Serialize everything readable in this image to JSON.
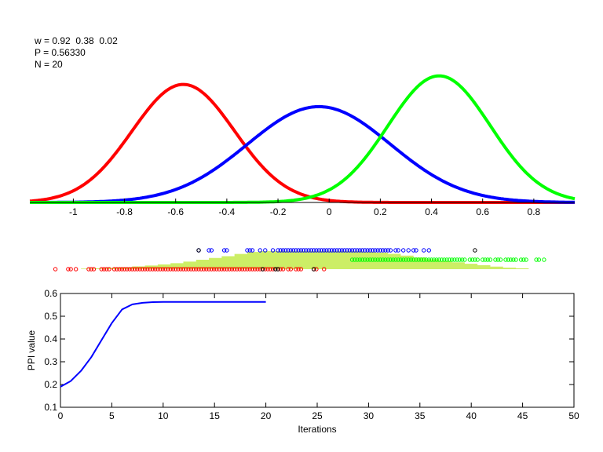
{
  "info": {
    "w_line": "w = 0.92  0.38  0.02",
    "p_line": "P = 0.56330",
    "n_line": "N = 20"
  },
  "chart_data": [
    {
      "type": "line",
      "title": "",
      "xlabel": "",
      "ylabel": "",
      "xlim": [
        -1.17,
        0.96
      ],
      "ylim": [
        0,
        1
      ],
      "x_ticks": [
        "-1",
        "-0.8",
        "-0.6",
        "-0.4",
        "-0.2",
        "0",
        "0.2",
        "0.4",
        "0.6",
        "0.8"
      ],
      "x_tick_values": [
        -1,
        -0.8,
        -0.6,
        -0.4,
        -0.2,
        0,
        0.2,
        0.4,
        0.6,
        0.8
      ],
      "grid": false,
      "series": [
        {
          "color": "#ff0000",
          "mean": -0.57,
          "sigma": 0.2,
          "peak": 0.69
        },
        {
          "color": "#0000ff",
          "mean": -0.04,
          "sigma": 0.28,
          "peak": 0.56
        },
        {
          "color": "#00ff00",
          "mean": 0.43,
          "sigma": 0.2,
          "peak": 0.74
        }
      ]
    },
    {
      "type": "scatter",
      "title": "",
      "xlim": [
        -1.17,
        0.96
      ],
      "histogram": {
        "color": "#ccee66",
        "bin_start": -0.97,
        "bin_width": 0.05,
        "heights": [
          0.03,
          0.05,
          0.08,
          0.11,
          0.15,
          0.2,
          0.26,
          0.33,
          0.42,
          0.52,
          0.62,
          0.72,
          0.84,
          0.95,
          1,
          1,
          1,
          1,
          1,
          1,
          1,
          1,
          0.97,
          0.92,
          0.85,
          0.75,
          0.65,
          0.55,
          0.46,
          0.38,
          0.3,
          0.22,
          0.14,
          0.08,
          0.05
        ]
      },
      "rows": [
        {
          "color": "#0000ff",
          "points": [
            -0.51,
            -0.47,
            -0.46,
            -0.41,
            -0.4,
            -0.32,
            -0.31,
            -0.3,
            -0.27,
            -0.25,
            -0.22,
            -0.2,
            -0.19,
            -0.18,
            -0.17,
            -0.16,
            -0.15,
            -0.14,
            -0.13,
            -0.12,
            -0.11,
            -0.1,
            -0.09,
            -0.08,
            -0.07,
            -0.06,
            -0.05,
            -0.04,
            -0.03,
            -0.02,
            -0.01,
            0,
            0.01,
            0.02,
            0.03,
            0.04,
            0.05,
            0.06,
            0.07,
            0.08,
            0.09,
            0.1,
            0.11,
            0.12,
            0.13,
            0.14,
            0.15,
            0.16,
            0.17,
            0.18,
            0.19,
            0.2,
            0.21,
            0.22,
            0.23,
            0.24,
            0.26,
            0.27,
            0.29,
            0.31,
            0.33,
            0.34,
            0.37,
            0.39
          ]
        },
        {
          "color": "#000000",
          "points": [
            -0.51,
            0.57
          ]
        },
        {
          "color": "#00ff00",
          "points": [
            0.09,
            0.1,
            0.11,
            0.12,
            0.13,
            0.14,
            0.15,
            0.16,
            0.17,
            0.18,
            0.19,
            0.2,
            0.21,
            0.22,
            0.23,
            0.24,
            0.25,
            0.26,
            0.27,
            0.28,
            0.29,
            0.3,
            0.31,
            0.32,
            0.33,
            0.34,
            0.35,
            0.36,
            0.37,
            0.38,
            0.39,
            0.4,
            0.41,
            0.42,
            0.43,
            0.44,
            0.45,
            0.46,
            0.47,
            0.48,
            0.49,
            0.5,
            0.51,
            0.52,
            0.53,
            0.55,
            0.56,
            0.57,
            0.58,
            0.6,
            0.61,
            0.62,
            0.63,
            0.65,
            0.66,
            0.67,
            0.69,
            0.7,
            0.71,
            0.72,
            0.73,
            0.75,
            0.76,
            0.77,
            0.81,
            0.82,
            0.84
          ]
        },
        {
          "color": "#ff0000",
          "points": [
            -1.07,
            -1.02,
            -1.01,
            -0.99,
            -0.94,
            -0.93,
            -0.92,
            -0.89,
            -0.88,
            -0.87,
            -0.86,
            -0.84,
            -0.83,
            -0.82,
            -0.81,
            -0.8,
            -0.79,
            -0.78,
            -0.77,
            -0.76,
            -0.75,
            -0.74,
            -0.73,
            -0.72,
            -0.71,
            -0.7,
            -0.69,
            -0.68,
            -0.67,
            -0.66,
            -0.65,
            -0.64,
            -0.63,
            -0.62,
            -0.61,
            -0.6,
            -0.59,
            -0.58,
            -0.57,
            -0.56,
            -0.55,
            -0.54,
            -0.53,
            -0.52,
            -0.51,
            -0.5,
            -0.49,
            -0.48,
            -0.47,
            -0.46,
            -0.45,
            -0.44,
            -0.43,
            -0.42,
            -0.41,
            -0.4,
            -0.39,
            -0.38,
            -0.37,
            -0.36,
            -0.35,
            -0.34,
            -0.33,
            -0.32,
            -0.31,
            -0.3,
            -0.29,
            -0.28,
            -0.27,
            -0.26,
            -0.25,
            -0.24,
            -0.23,
            -0.22,
            -0.21,
            -0.2,
            -0.19,
            -0.18,
            -0.16,
            -0.15,
            -0.13,
            -0.12,
            -0.11,
            -0.06,
            -0.05,
            -0.02
          ]
        },
        {
          "color": "#000000",
          "points": [
            -0.26,
            -0.21,
            -0.2,
            -0.06
          ]
        }
      ]
    },
    {
      "type": "line",
      "title": "",
      "xlabel": "Iterations",
      "ylabel": "PPI value",
      "xlim": [
        0,
        50
      ],
      "ylim": [
        0.1,
        0.6
      ],
      "x_ticks": [
        "0",
        "5",
        "10",
        "15",
        "20",
        "25",
        "30",
        "35",
        "40",
        "45",
        "50"
      ],
      "y_ticks": [
        "0.1",
        "0.2",
        "0.3",
        "0.4",
        "0.5",
        "0.6"
      ],
      "grid": false,
      "series": [
        {
          "color": "#0000ff",
          "x": [
            0,
            1,
            2,
            3,
            4,
            5,
            6,
            7,
            8,
            9,
            10,
            11,
            12,
            13,
            14,
            15,
            16,
            17,
            18,
            19,
            20
          ],
          "y": [
            0.19,
            0.215,
            0.26,
            0.32,
            0.395,
            0.47,
            0.53,
            0.552,
            0.559,
            0.562,
            0.563,
            0.563,
            0.563,
            0.563,
            0.563,
            0.563,
            0.563,
            0.563,
            0.563,
            0.563,
            0.563
          ]
        }
      ]
    }
  ]
}
